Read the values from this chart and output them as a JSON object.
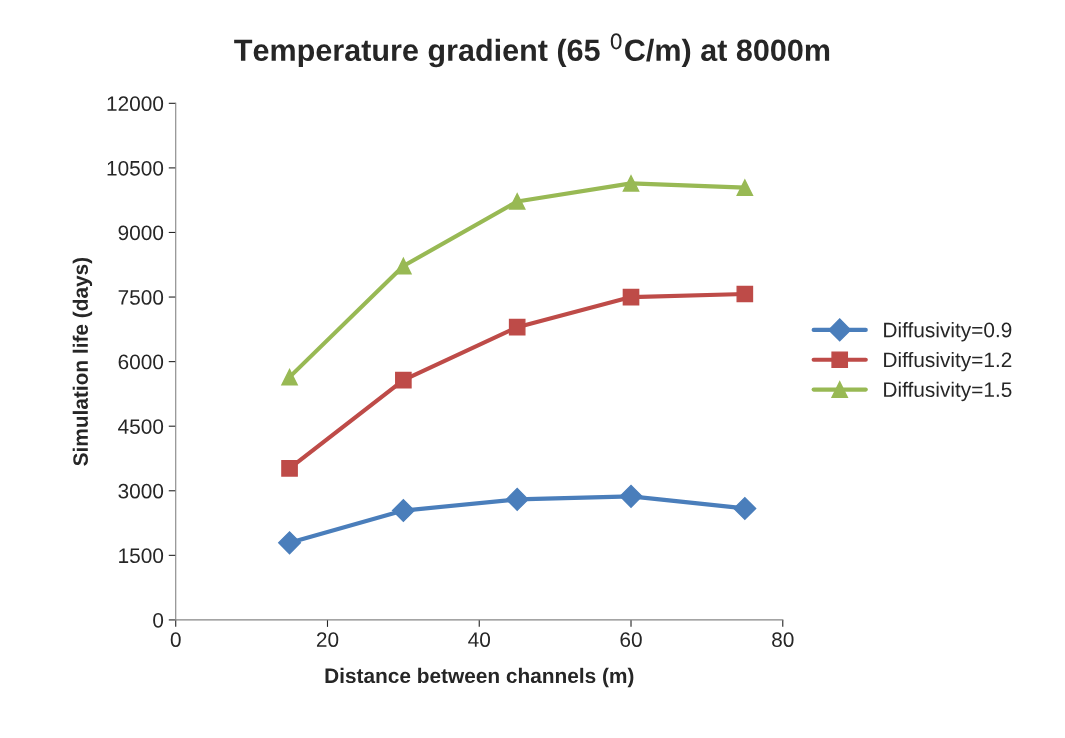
{
  "chart_data": {
    "type": "line",
    "title": "Temperature gradient (65 $^{0}$C/m) at 8000m",
    "xlabel": "Distance between channels (m)",
    "ylabel": "Simulation life (days)",
    "x": [
      15,
      30,
      45,
      60,
      75
    ],
    "series": [
      {
        "name": "Diffusivity=0.9",
        "color": "#4a7ebb",
        "marker": "diamond",
        "values": [
          1790,
          2540,
          2800,
          2870,
          2590
        ]
      },
      {
        "name": "Diffusivity=1.2",
        "color": "#be4b48",
        "marker": "square",
        "values": [
          3520,
          5570,
          6800,
          7500,
          7570
        ]
      },
      {
        "name": "Diffusivity=1.5",
        "color": "#98b954",
        "marker": "triangle",
        "values": [
          5640,
          8220,
          9720,
          10140,
          10040
        ]
      }
    ],
    "xlim": [
      0,
      80
    ],
    "xticks": [
      0,
      20,
      40,
      60,
      80
    ],
    "ylim": [
      0,
      12000
    ],
    "yticks": [
      0,
      1500,
      3000,
      4500,
      6000,
      7500,
      9000,
      10500,
      12000
    ],
    "grid": false,
    "legend": "right",
    "line_style": "solid"
  }
}
